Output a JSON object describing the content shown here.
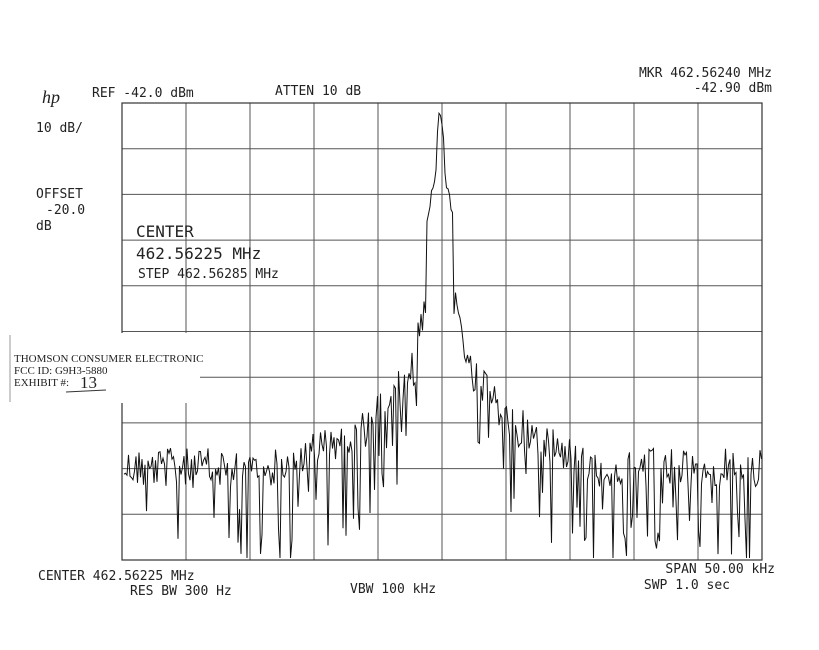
{
  "header": {
    "logo": "hp",
    "ref": "REF -42.0 dBm",
    "atten": "ATTEN 10 dB",
    "marker_freq": "MKR 462.56240 MHz",
    "marker_level": "-42.90 dBm"
  },
  "left": {
    "scale": "10 dB/",
    "offset_label": "OFFSET",
    "offset_value": "-20.0",
    "offset_unit": "dB"
  },
  "overlay": {
    "center_label": "CENTER",
    "center_freq": "462.56225 MHz",
    "step": "STEP 462.56285 MHz"
  },
  "stamp": {
    "company": "THOMSON CONSUMER ELECTRONIC",
    "fcc_id": "FCC ID:  G9H3-5880",
    "exhibit_label": "EXHIBIT #:",
    "exhibit_number": "13"
  },
  "footer": {
    "center": "CENTER 462.56225 MHz",
    "res_bw": "RES BW 300 Hz",
    "vbw": "VBW 100 kHz",
    "span": "SPAN 50.00 kHz",
    "sweep": "SWP 1.0  sec"
  }
}
